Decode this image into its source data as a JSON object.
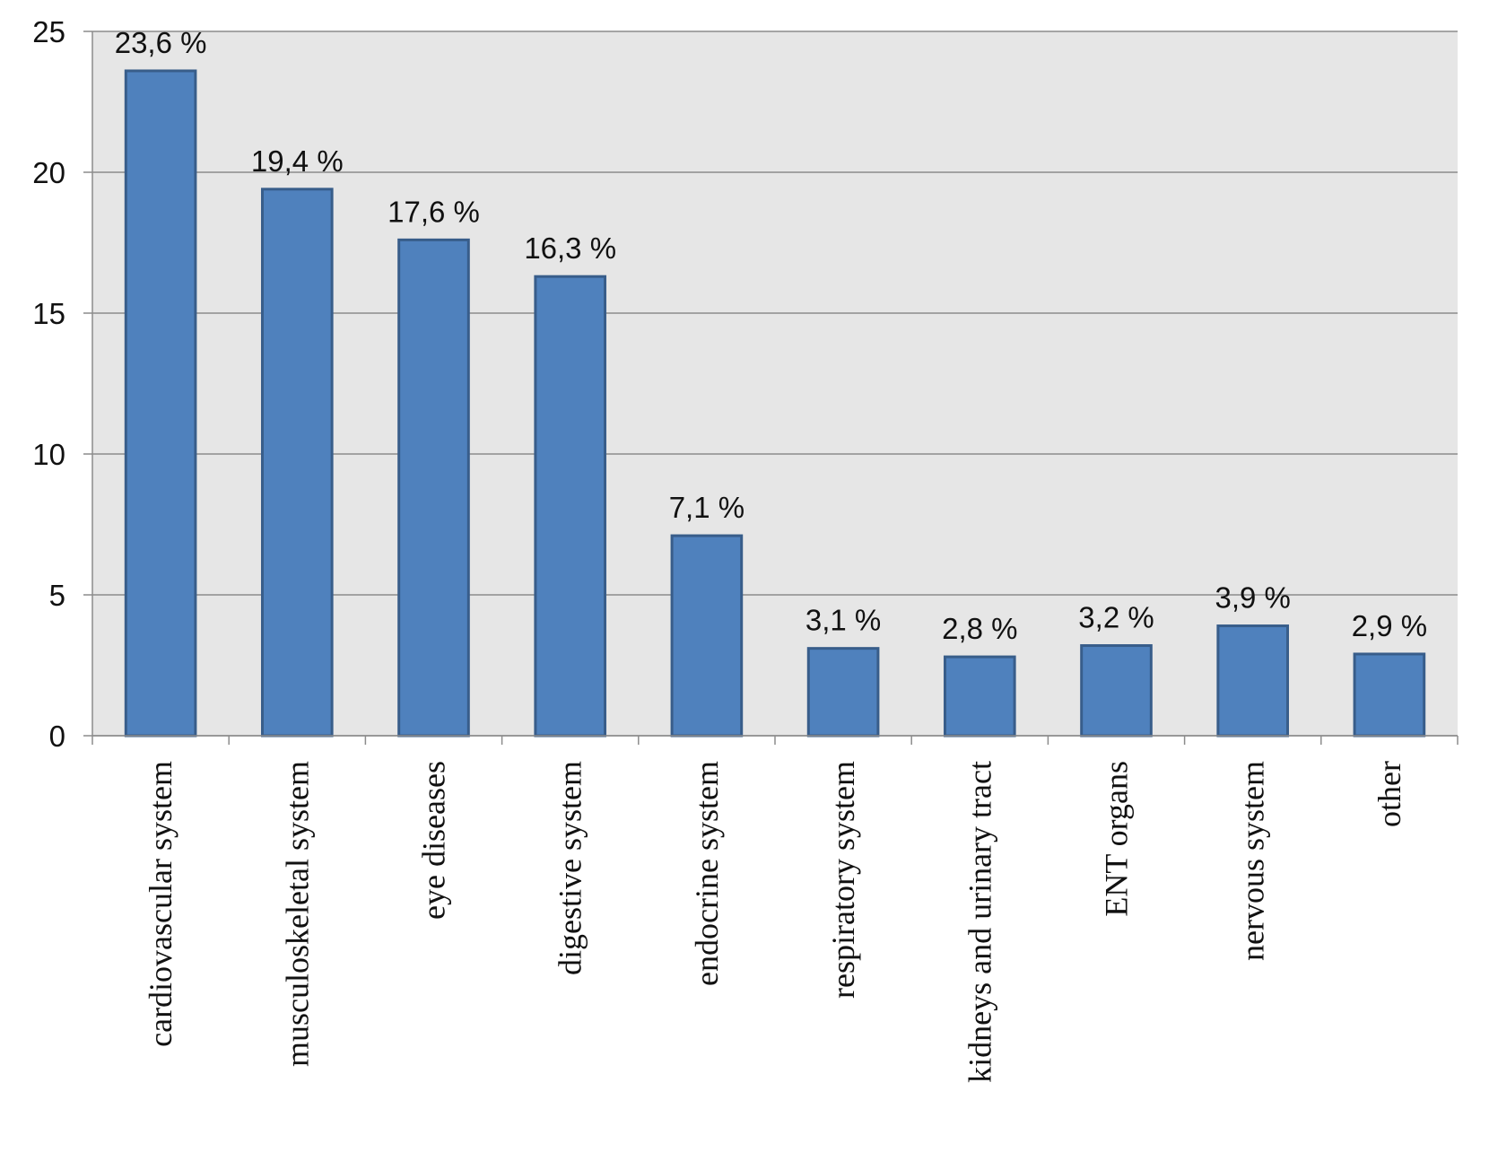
{
  "chart_data": {
    "type": "bar",
    "title": "",
    "xlabel": "",
    "ylabel": "",
    "ylim": [
      0,
      25
    ],
    "yticks": [
      0,
      5,
      10,
      15,
      20,
      25
    ],
    "grid": true,
    "legend": "none",
    "categories": [
      "cardiovascular system",
      "musculoskeletal system",
      "eye diseases",
      "digestive system",
      "endocrine system",
      "respiratory system",
      "kidneys and urinary tract",
      "ENT organs",
      "nervous system",
      "other"
    ],
    "values": [
      23.6,
      19.4,
      17.6,
      16.3,
      7.1,
      3.1,
      2.8,
      3.2,
      3.9,
      2.9
    ],
    "data_labels": [
      "23,6 %",
      "19,4 %",
      "17,6 %",
      "16,3 %",
      "7,1 %",
      "3,1 %",
      "2,8 %",
      "3,2 %",
      "3,9 %",
      "2,9 %"
    ],
    "colors": {
      "bar": "#4f81bd",
      "bar_border": "#385d8a",
      "plot_background": "#e6e6e6",
      "grid": "#8c8c8c"
    }
  }
}
